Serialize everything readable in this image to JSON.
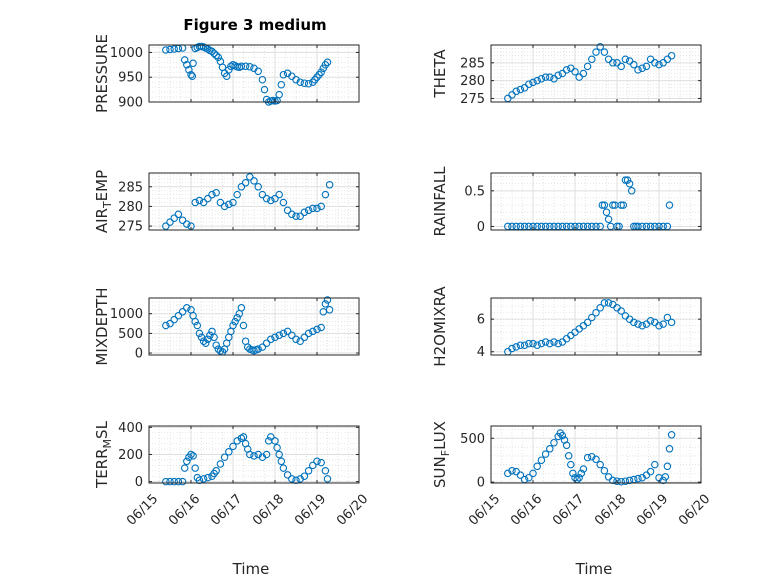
{
  "title": "Figure 3 medium",
  "xlabel": "Time",
  "colors": {
    "marker": "#0072BD",
    "axis": "#262626",
    "grid": "#dfdfdf"
  },
  "chart_data": [
    {
      "type": "scatter",
      "ylabel": "PRESSURE",
      "col": 0,
      "row": 0,
      "xlim": [
        15.0,
        20.0
      ],
      "ylim": [
        900,
        1015
      ],
      "yticks": [
        900,
        950,
        1000
      ],
      "x": [
        15.4,
        15.5,
        15.6,
        15.7,
        15.8,
        15.85,
        15.9,
        15.95,
        16.0,
        16.03,
        16.05,
        16.1,
        16.15,
        16.2,
        16.25,
        16.3,
        16.35,
        16.4,
        16.45,
        16.5,
        16.55,
        16.6,
        16.65,
        16.7,
        16.75,
        16.8,
        16.85,
        16.9,
        16.95,
        17.0,
        17.05,
        17.1,
        17.15,
        17.2,
        17.3,
        17.4,
        17.5,
        17.6,
        17.7,
        17.75,
        17.8,
        17.85,
        17.9,
        17.95,
        18.0,
        18.05,
        18.1,
        18.15,
        18.2,
        18.3,
        18.4,
        18.5,
        18.6,
        18.7,
        18.8,
        18.9,
        18.95,
        19.0,
        19.05,
        19.1,
        19.15,
        19.2,
        19.25
      ],
      "y": [
        1005,
        1006,
        1007,
        1008,
        1009,
        985,
        975,
        965,
        955,
        952,
        978,
        1008,
        1010,
        1012,
        1012,
        1011,
        1009,
        1007,
        1004,
        1002,
        998,
        994,
        990,
        982,
        970,
        958,
        952,
        965,
        972,
        975,
        973,
        971,
        970,
        972,
        972,
        971,
        968,
        962,
        945,
        925,
        905,
        900,
        902,
        903,
        902,
        903,
        915,
        935,
        955,
        958,
        952,
        945,
        940,
        938,
        937,
        940,
        945,
        950,
        955,
        960,
        968,
        975,
        980
      ]
    },
    {
      "type": "scatter",
      "ylabel": "THETA",
      "col": 1,
      "row": 0,
      "xlim": [
        15.0,
        20.0
      ],
      "ylim": [
        274,
        290
      ],
      "yticks": [
        275,
        280,
        285
      ],
      "x": [
        15.4,
        15.5,
        15.6,
        15.7,
        15.8,
        15.9,
        16.0,
        16.1,
        16.2,
        16.3,
        16.4,
        16.5,
        16.6,
        16.7,
        16.8,
        16.9,
        17.0,
        17.1,
        17.2,
        17.3,
        17.4,
        17.5,
        17.6,
        17.7,
        17.8,
        17.9,
        18.0,
        18.1,
        18.2,
        18.3,
        18.4,
        18.5,
        18.6,
        18.7,
        18.8,
        18.9,
        19.0,
        19.1,
        19.2,
        19.3
      ],
      "y": [
        275,
        276,
        277,
        277.5,
        278,
        279,
        279.5,
        280,
        280.5,
        281,
        281,
        280.5,
        281.5,
        282,
        283,
        283.5,
        282.5,
        281,
        282,
        284,
        286,
        288,
        289.5,
        288,
        286,
        285,
        285,
        284,
        286,
        285.5,
        284.5,
        283,
        283.5,
        284,
        286,
        285,
        284.5,
        285,
        286,
        287
      ]
    },
    {
      "type": "scatter",
      "ylabel": "AIR_TEMP",
      "col": 0,
      "row": 1,
      "xlim": [
        15.0,
        20.0
      ],
      "ylim": [
        274,
        288.5
      ],
      "yticks": [
        275,
        280,
        285
      ],
      "x": [
        15.4,
        15.5,
        15.6,
        15.7,
        15.8,
        15.9,
        16.0,
        16.1,
        16.2,
        16.3,
        16.4,
        16.5,
        16.6,
        16.7,
        16.8,
        16.9,
        17.0,
        17.1,
        17.2,
        17.3,
        17.4,
        17.5,
        17.6,
        17.7,
        17.8,
        17.9,
        18.0,
        18.1,
        18.2,
        18.3,
        18.4,
        18.5,
        18.6,
        18.7,
        18.8,
        18.9,
        19.0,
        19.1,
        19.2,
        19.3
      ],
      "y": [
        275,
        276,
        277,
        278,
        276.5,
        275.5,
        275,
        281,
        281.5,
        281,
        282,
        283,
        283.5,
        281,
        280,
        280.5,
        281,
        283,
        285,
        286,
        287.5,
        286.5,
        285,
        283,
        282,
        281.5,
        282,
        283,
        281,
        279,
        278,
        277.5,
        277.5,
        278.5,
        279,
        279.5,
        279.5,
        280,
        283,
        285.5
      ]
    },
    {
      "type": "scatter",
      "ylabel": "RAINFALL",
      "col": 1,
      "row": 1,
      "xlim": [
        15.0,
        20.0
      ],
      "ylim": [
        -0.05,
        0.75
      ],
      "yticks": [
        0,
        0.5
      ],
      "x": [
        15.4,
        15.5,
        15.6,
        15.7,
        15.8,
        15.9,
        16.0,
        16.1,
        16.2,
        16.3,
        16.4,
        16.5,
        16.6,
        16.7,
        16.8,
        16.9,
        17.0,
        17.1,
        17.2,
        17.3,
        17.4,
        17.5,
        17.6,
        17.65,
        17.7,
        17.75,
        17.8,
        17.85,
        17.9,
        17.95,
        18.0,
        18.05,
        18.1,
        18.15,
        18.2,
        18.25,
        18.3,
        18.35,
        18.4,
        18.45,
        18.5,
        18.6,
        18.7,
        18.8,
        18.9,
        19.0,
        19.1,
        19.2,
        19.25
      ],
      "y": [
        0,
        0,
        0,
        0,
        0,
        0,
        0,
        0,
        0,
        0,
        0,
        0,
        0,
        0,
        0,
        0,
        0,
        0,
        0,
        0,
        0,
        0,
        0,
        0.3,
        0.3,
        0.2,
        0.1,
        0,
        0.3,
        0.3,
        0,
        0,
        0.3,
        0.3,
        0.65,
        0.65,
        0.6,
        0.5,
        0,
        0,
        0,
        0,
        0,
        0,
        0,
        0,
        0,
        0,
        0.3
      ]
    },
    {
      "type": "scatter",
      "ylabel": "MIXDEPTH",
      "col": 0,
      "row": 2,
      "xlim": [
        15.0,
        20.0
      ],
      "ylim": [
        -50,
        1400
      ],
      "yticks": [
        0,
        500,
        1000
      ],
      "x": [
        15.4,
        15.5,
        15.6,
        15.7,
        15.8,
        15.9,
        16.0,
        16.05,
        16.1,
        16.15,
        16.2,
        16.25,
        16.3,
        16.35,
        16.4,
        16.45,
        16.5,
        16.55,
        16.6,
        16.65,
        16.7,
        16.75,
        16.8,
        16.85,
        16.9,
        16.95,
        17.0,
        17.05,
        17.1,
        17.15,
        17.2,
        17.25,
        17.3,
        17.35,
        17.4,
        17.45,
        17.5,
        17.55,
        17.6,
        17.7,
        17.8,
        17.9,
        18.0,
        18.1,
        18.2,
        18.3,
        18.4,
        18.5,
        18.6,
        18.7,
        18.8,
        18.9,
        19.0,
        19.1,
        19.15,
        19.2,
        19.25,
        19.3
      ],
      "y": [
        700,
        750,
        850,
        950,
        1050,
        1150,
        1100,
        950,
        800,
        700,
        500,
        400,
        300,
        250,
        350,
        450,
        550,
        400,
        200,
        100,
        50,
        30,
        100,
        250,
        400,
        550,
        700,
        800,
        900,
        1000,
        1150,
        700,
        300,
        150,
        100,
        80,
        60,
        80,
        100,
        150,
        250,
        350,
        400,
        450,
        500,
        550,
        450,
        350,
        300,
        400,
        500,
        550,
        600,
        650,
        1050,
        1250,
        1350,
        1100
      ]
    },
    {
      "type": "scatter",
      "ylabel": "H2OMIXRA",
      "col": 1,
      "row": 2,
      "xlim": [
        15.0,
        20.0
      ],
      "ylim": [
        3.8,
        7.3
      ],
      "yticks": [
        4,
        6
      ],
      "x": [
        15.4,
        15.5,
        15.6,
        15.7,
        15.8,
        15.9,
        16.0,
        16.1,
        16.2,
        16.3,
        16.4,
        16.5,
        16.6,
        16.7,
        16.8,
        16.9,
        17.0,
        17.1,
        17.2,
        17.3,
        17.4,
        17.5,
        17.6,
        17.7,
        17.8,
        17.9,
        18.0,
        18.1,
        18.2,
        18.3,
        18.4,
        18.5,
        18.6,
        18.7,
        18.8,
        18.9,
        19.0,
        19.1,
        19.2,
        19.3
      ],
      "y": [
        4,
        4.2,
        4.3,
        4.4,
        4.4,
        4.5,
        4.5,
        4.4,
        4.5,
        4.6,
        4.5,
        4.6,
        4.5,
        4.6,
        4.8,
        5,
        5.2,
        5.4,
        5.6,
        5.8,
        6.1,
        6.4,
        6.7,
        7,
        7,
        6.9,
        6.7,
        6.5,
        6.2,
        6,
        5.8,
        5.7,
        5.6,
        5.7,
        5.9,
        5.8,
        5.6,
        5.7,
        6.1,
        5.8
      ]
    },
    {
      "type": "scatter",
      "ylabel": "TERR_MSL",
      "col": 0,
      "row": 3,
      "xlim": [
        15.0,
        20.0
      ],
      "ylim": [
        -10,
        410
      ],
      "yticks": [
        0,
        200,
        400
      ],
      "x": [
        15.4,
        15.5,
        15.6,
        15.7,
        15.8,
        15.85,
        15.9,
        15.95,
        16.0,
        16.05,
        16.1,
        16.15,
        16.2,
        16.3,
        16.4,
        16.5,
        16.55,
        16.6,
        16.7,
        16.8,
        16.9,
        17.0,
        17.1,
        17.2,
        17.25,
        17.3,
        17.35,
        17.4,
        17.5,
        17.6,
        17.7,
        17.8,
        17.85,
        17.9,
        18.0,
        18.05,
        18.1,
        18.15,
        18.2,
        18.3,
        18.4,
        18.5,
        18.6,
        18.7,
        18.8,
        18.9,
        19.0,
        19.1,
        19.2,
        19.25
      ],
      "y": [
        0,
        0,
        0,
        0,
        0,
        100,
        150,
        180,
        200,
        190,
        100,
        30,
        10,
        20,
        30,
        40,
        60,
        80,
        130,
        180,
        220,
        260,
        300,
        320,
        330,
        280,
        240,
        200,
        190,
        200,
        180,
        200,
        300,
        330,
        300,
        250,
        200,
        150,
        100,
        50,
        20,
        10,
        20,
        40,
        80,
        120,
        150,
        140,
        80,
        20
      ]
    },
    {
      "type": "scatter",
      "ylabel": "SUN_FLUX",
      "col": 1,
      "row": 3,
      "xlim": [
        15.0,
        20.0
      ],
      "ylim": [
        -10,
        640
      ],
      "yticks": [
        0,
        500
      ],
      "x": [
        15.4,
        15.5,
        15.6,
        15.7,
        15.8,
        15.9,
        16.0,
        16.1,
        16.2,
        16.3,
        16.4,
        16.5,
        16.6,
        16.65,
        16.7,
        16.75,
        16.8,
        16.85,
        16.9,
        16.95,
        17.0,
        17.05,
        17.1,
        17.15,
        17.2,
        17.3,
        17.4,
        17.5,
        17.6,
        17.7,
        17.8,
        17.9,
        18.0,
        18.1,
        18.2,
        18.3,
        18.4,
        18.5,
        18.6,
        18.7,
        18.8,
        18.9,
        19.0,
        19.1,
        19.15,
        19.2,
        19.25,
        19.3
      ],
      "y": [
        100,
        130,
        120,
        80,
        30,
        50,
        100,
        180,
        250,
        320,
        380,
        450,
        520,
        560,
        530,
        480,
        420,
        300,
        200,
        100,
        50,
        30,
        50,
        100,
        150,
        280,
        290,
        260,
        200,
        130,
        60,
        20,
        10,
        5,
        10,
        20,
        30,
        40,
        50,
        80,
        120,
        200,
        50,
        20,
        60,
        180,
        380,
        540
      ]
    }
  ]
}
